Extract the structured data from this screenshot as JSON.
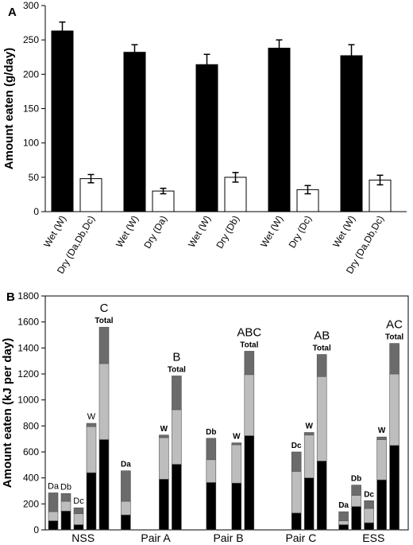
{
  "chart_data": [
    {
      "panel": "A",
      "type": "bar",
      "ylabel": "Amount eaten (g/day)",
      "ylim": [
        0,
        300
      ],
      "yticks": [
        0,
        50,
        100,
        150,
        200,
        250,
        300
      ],
      "groups": [
        {
          "bars": [
            {
              "label": "Wet (W)",
              "value": 263,
              "error": 13,
              "fill": "#000000"
            },
            {
              "label": "Dry (Da,Db,Dc)",
              "value": 48,
              "error": 6,
              "fill": "#ffffff"
            }
          ]
        },
        {
          "bars": [
            {
              "label": "Wet (W)",
              "value": 232,
              "error": 11,
              "fill": "#000000"
            },
            {
              "label": "Dry (Da)",
              "value": 30,
              "error": 4,
              "fill": "#ffffff"
            }
          ]
        },
        {
          "bars": [
            {
              "label": "Wet (W)",
              "value": 214,
              "error": 15,
              "fill": "#000000"
            },
            {
              "label": "Dry (Db)",
              "value": 50,
              "error": 7,
              "fill": "#ffffff"
            }
          ]
        },
        {
          "bars": [
            {
              "label": "Wet (W)",
              "value": 238,
              "error": 12,
              "fill": "#000000"
            },
            {
              "label": "Dry (Dc)",
              "value": 32,
              "error": 6,
              "fill": "#ffffff"
            }
          ]
        },
        {
          "bars": [
            {
              "label": "Wet (W)",
              "value": 227,
              "error": 16,
              "fill": "#000000"
            },
            {
              "label": "Dry (Da,Db,Dc)",
              "value": 46,
              "error": 7,
              "fill": "#ffffff"
            }
          ]
        }
      ]
    },
    {
      "panel": "B",
      "type": "bar",
      "stacked": true,
      "ylabel": "Amount eaten (kJ per day)",
      "ylim": [
        0,
        1800
      ],
      "yticks": [
        0,
        200,
        400,
        600,
        800,
        1000,
        1200,
        1400,
        1600,
        1800
      ],
      "segment_colors": [
        "#000000",
        "#bdbdbd",
        "#ffffff",
        "#6b6b6b"
      ],
      "groups": [
        {
          "name": "NSS",
          "letter": "C",
          "bars": [
            {
              "label": "Da",
              "segments": [
                70,
                70,
                0,
                145
              ]
            },
            {
              "label": "Db",
              "segments": [
                145,
                75,
                0,
                60
              ]
            },
            {
              "label": "Dc",
              "segments": [
                40,
                85,
                0,
                45
              ]
            },
            {
              "label": "W",
              "segments": [
                440,
                355,
                0,
                25
              ]
            },
            {
              "label": "Total",
              "segments": [
                695,
                585,
                0,
                280
              ]
            }
          ]
        },
        {
          "name": "Pair A",
          "letter": "B",
          "bars": [
            {
              "label": "Da",
              "segments": [
                115,
                105,
                0,
                235
              ]
            },
            {
              "label": "",
              "segments": []
            },
            {
              "label": "",
              "segments": []
            },
            {
              "label": "W",
              "segments": [
                390,
                320,
                0,
                20
              ]
            },
            {
              "label": "Total",
              "segments": [
                505,
                420,
                0,
                260
              ]
            }
          ]
        },
        {
          "name": "Pair B",
          "letter": "ABC",
          "bars": [
            {
              "label": "",
              "segments": []
            },
            {
              "label": "Db",
              "segments": [
                365,
                175,
                0,
                165
              ]
            },
            {
              "label": "",
              "segments": []
            },
            {
              "label": "W",
              "segments": [
                360,
                295,
                0,
                15
              ]
            },
            {
              "label": "Total",
              "segments": [
                725,
                470,
                0,
                180
              ]
            }
          ]
        },
        {
          "name": "Pair C",
          "letter": "AB",
          "bars": [
            {
              "label": "",
              "segments": []
            },
            {
              "label": "",
              "segments": []
            },
            {
              "label": "Dc",
              "segments": [
                130,
                320,
                0,
                150
              ]
            },
            {
              "label": "W",
              "segments": [
                400,
                330,
                0,
                20
              ]
            },
            {
              "label": "Total",
              "segments": [
                530,
                650,
                0,
                170
              ]
            }
          ]
        },
        {
          "name": "ESS",
          "letter": "AC",
          "bars": [
            {
              "label": "Da",
              "segments": [
                40,
                30,
                0,
                70
              ]
            },
            {
              "label": "Db",
              "segments": [
                180,
                85,
                0,
                80
              ]
            },
            {
              "label": "Dc",
              "segments": [
                55,
                110,
                0,
                60
              ]
            },
            {
              "label": "W",
              "segments": [
                385,
                310,
                0,
                20
              ]
            },
            {
              "label": "Total",
              "segments": [
                650,
                550,
                0,
                235
              ]
            }
          ]
        }
      ]
    }
  ]
}
